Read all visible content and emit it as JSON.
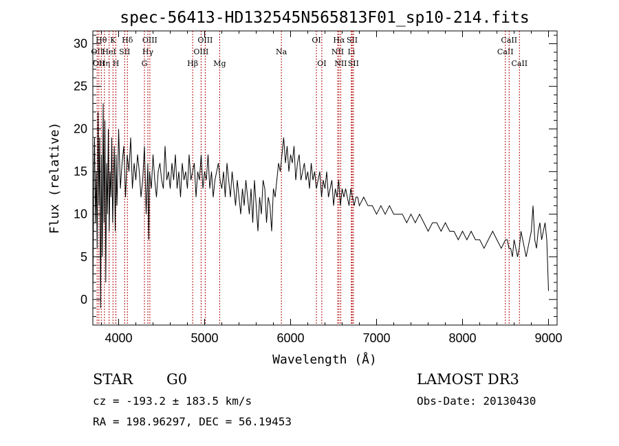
{
  "chart_data": {
    "type": "line",
    "title": "spec-56413-HD132545N565813F01_sp10-214.fits",
    "xlabel": "Wavelength (Å)",
    "ylabel": "Flux (relative)",
    "xlim": [
      3700,
      9100
    ],
    "ylim": [
      -3,
      31.5
    ],
    "xticks": [
      4000,
      5000,
      6000,
      7000,
      8000,
      9000
    ],
    "yticks": [
      0,
      5,
      10,
      15,
      20,
      25,
      30
    ],
    "series": [
      {
        "name": "flux",
        "x": [
          3700,
          3710,
          3720,
          3730,
          3740,
          3750,
          3760,
          3770,
          3780,
          3790,
          3800,
          3810,
          3820,
          3830,
          3840,
          3850,
          3860,
          3870,
          3880,
          3890,
          3900,
          3910,
          3920,
          3930,
          3940,
          3950,
          3960,
          3970,
          3980,
          3990,
          4000,
          4020,
          4040,
          4060,
          4080,
          4100,
          4120,
          4140,
          4160,
          4180,
          4200,
          4220,
          4240,
          4260,
          4280,
          4300,
          4320,
          4340,
          4350,
          4360,
          4380,
          4400,
          4420,
          4440,
          4460,
          4480,
          4500,
          4520,
          4540,
          4560,
          4580,
          4600,
          4620,
          4640,
          4660,
          4680,
          4700,
          4720,
          4740,
          4760,
          4780,
          4800,
          4820,
          4840,
          4860,
          4880,
          4900,
          4920,
          4940,
          4960,
          4980,
          5000,
          5020,
          5040,
          5060,
          5080,
          5100,
          5120,
          5140,
          5160,
          5180,
          5200,
          5220,
          5240,
          5260,
          5280,
          5300,
          5320,
          5340,
          5360,
          5380,
          5400,
          5420,
          5440,
          5460,
          5480,
          5500,
          5520,
          5540,
          5560,
          5580,
          5600,
          5620,
          5640,
          5660,
          5680,
          5700,
          5720,
          5740,
          5760,
          5780,
          5800,
          5820,
          5840,
          5860,
          5880,
          5900,
          5920,
          5940,
          5960,
          5980,
          6000,
          6020,
          6040,
          6060,
          6080,
          6100,
          6120,
          6140,
          6160,
          6180,
          6200,
          6220,
          6240,
          6260,
          6280,
          6300,
          6320,
          6340,
          6360,
          6380,
          6400,
          6420,
          6440,
          6460,
          6480,
          6500,
          6520,
          6540,
          6560,
          6580,
          6600,
          6620,
          6640,
          6660,
          6680,
          6700,
          6720,
          6740,
          6760,
          6780,
          6800,
          6850,
          6900,
          6950,
          7000,
          7050,
          7100,
          7150,
          7200,
          7250,
          7300,
          7350,
          7400,
          7450,
          7500,
          7550,
          7600,
          7650,
          7700,
          7750,
          7800,
          7850,
          7900,
          7950,
          8000,
          8050,
          8100,
          8150,
          8200,
          8250,
          8300,
          8350,
          8400,
          8450,
          8500,
          8520,
          8540,
          8560,
          8580,
          8600,
          8620,
          8640,
          8660,
          8680,
          8700,
          8720,
          8740,
          8760,
          8780,
          8800,
          8820,
          8840,
          8860,
          8880,
          8900,
          8920,
          8940,
          8960,
          8980,
          9000
        ],
        "y": [
          0,
          14,
          19,
          9,
          15,
          6,
          22,
          11,
          19,
          -1,
          17,
          5,
          23,
          9,
          21,
          2,
          16,
          10,
          20,
          8,
          15,
          12,
          19,
          9,
          14,
          18,
          8,
          17,
          11,
          15,
          20,
          13,
          16,
          18,
          12,
          17,
          15,
          19,
          13,
          16,
          14,
          17,
          15,
          12,
          14,
          18,
          10,
          16,
          7,
          15,
          13,
          17,
          14,
          12,
          15,
          16,
          14,
          13,
          18,
          14,
          15,
          13,
          16,
          14,
          17,
          13,
          15,
          12,
          16,
          14,
          15,
          13,
          17,
          14,
          15,
          16,
          12,
          15,
          14,
          17,
          13,
          15,
          14,
          17,
          13,
          15,
          12,
          14,
          15,
          16,
          14,
          13,
          15,
          12,
          16,
          14,
          12,
          15,
          13,
          11,
          14,
          12,
          10,
          13,
          11,
          14,
          12,
          10,
          13,
          9,
          14,
          11,
          8,
          12,
          10,
          14,
          13,
          9,
          12,
          11,
          8,
          13,
          12,
          14,
          16,
          15,
          17,
          19,
          16,
          18,
          15,
          17,
          16,
          18,
          14,
          16,
          17,
          14,
          15,
          16,
          14,
          15,
          13,
          16,
          14,
          15,
          13,
          14,
          15,
          12,
          14,
          13,
          15,
          12,
          13,
          14,
          11,
          13,
          12,
          14,
          11,
          13,
          12,
          13,
          12,
          11,
          13,
          12,
          11,
          12,
          12,
          11,
          12,
          11,
          11,
          10,
          11,
          10,
          11,
          10,
          10,
          10,
          9,
          10,
          9,
          10,
          9,
          8,
          9,
          9,
          8,
          9,
          8,
          8,
          7,
          8,
          7,
          8,
          7,
          7,
          6,
          7,
          8,
          7,
          6,
          7,
          7,
          6,
          6,
          5,
          7,
          6,
          5,
          6,
          8,
          7,
          6,
          5,
          6,
          7,
          8,
          11,
          7,
          6,
          8,
          9,
          7,
          8,
          9,
          7,
          1
        ]
      }
    ],
    "lines": [
      {
        "lambda": 3750,
        "label": "OII",
        "row": 2
      },
      {
        "lambda": 3770,
        "label": "OII",
        "row": 3
      },
      {
        "lambda": 3798,
        "label": "Hθ",
        "row": 1
      },
      {
        "lambda": 3835,
        "label": "Hη",
        "row": 3
      },
      {
        "lambda": 3889,
        "label": "HeI",
        "row": 2
      },
      {
        "lambda": 3934,
        "label": "K",
        "row": 1
      },
      {
        "lambda": 3968,
        "label": "H",
        "row": 3
      },
      {
        "lambda": 4070,
        "label": "SII",
        "row": 2
      },
      {
        "lambda": 4102,
        "label": "Hδ",
        "row": 1
      },
      {
        "lambda": 4300,
        "label": "G",
        "row": 3
      },
      {
        "lambda": 4340,
        "label": "Hγ",
        "row": 2
      },
      {
        "lambda": 4363,
        "label": "OIII",
        "row": 1
      },
      {
        "lambda": 4861,
        "label": "Hβ",
        "row": 3
      },
      {
        "lambda": 4959,
        "label": "OIII",
        "row": 2
      },
      {
        "lambda": 5007,
        "label": "OIII",
        "row": 1
      },
      {
        "lambda": 5175,
        "label": "Mg",
        "row": 3
      },
      {
        "lambda": 5893,
        "label": "Na",
        "row": 2
      },
      {
        "lambda": 6300,
        "label": "OI",
        "row": 1
      },
      {
        "lambda": 6363,
        "label": "OI",
        "row": 3
      },
      {
        "lambda": 6548,
        "label": "NII",
        "row": 2
      },
      {
        "lambda": 6563,
        "label": "Hα",
        "row": 1
      },
      {
        "lambda": 6583,
        "label": "NII",
        "row": 3
      },
      {
        "lambda": 6707,
        "label": "Li",
        "row": 2
      },
      {
        "lambda": 6716,
        "label": "SII",
        "row": 1
      },
      {
        "lambda": 6731,
        "label": "SII",
        "row": 3
      },
      {
        "lambda": 8498,
        "label": "CaII",
        "row": 2
      },
      {
        "lambda": 8542,
        "label": "CaII",
        "row": 1
      },
      {
        "lambda": 8662,
        "label": "CaII",
        "row": 3
      }
    ]
  },
  "info": {
    "class": "STAR",
    "subclass": "G0",
    "survey": "LAMOST DR3",
    "cz": "cz = -193.2 ± 183.5 km/s",
    "obs_date": "Obs-Date: 20130430",
    "coords": "RA = 198.96297, DEC =  56.19453"
  },
  "colors": {
    "spectrum": "#000000",
    "line_marker": "#b00000",
    "axis": "#000000"
  }
}
